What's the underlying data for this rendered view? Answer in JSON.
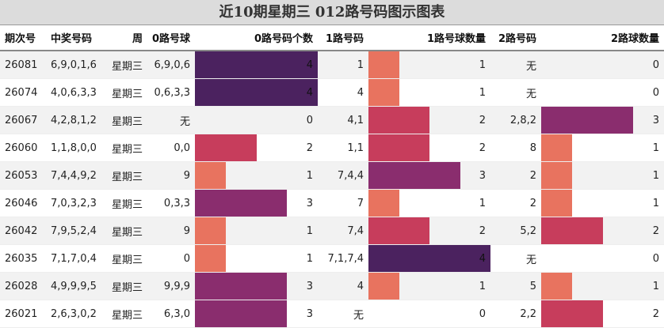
{
  "title": "近10期星期三 012路号码图示图表",
  "headers": [
    "期次号",
    "中奖号码",
    "周",
    "0路号球",
    "0路号码个数",
    "1路号码",
    "1路号球数量",
    "2路号码",
    "2路球数量"
  ],
  "max_count": 4,
  "colors": {
    "1": "#e8735f",
    "2": "#c73d5c",
    "3": "#8a2d6e",
    "4": "#4b225f"
  },
  "rows": [
    {
      "issue": "26081",
      "nums": "6,9,0,1,6",
      "day": "星期三",
      "r0": "6,9,0,6",
      "c0": 4,
      "r1": "1",
      "c1": 1,
      "r2": "无",
      "c2": 0
    },
    {
      "issue": "26074",
      "nums": "4,0,6,3,3",
      "day": "星期三",
      "r0": "0,6,3,3",
      "c0": 4,
      "r1": "4",
      "c1": 1,
      "r2": "无",
      "c2": 0
    },
    {
      "issue": "26067",
      "nums": "4,2,8,1,2",
      "day": "星期三",
      "r0": "无",
      "c0": 0,
      "r1": "4,1",
      "c1": 2,
      "r2": "2,8,2",
      "c2": 3
    },
    {
      "issue": "26060",
      "nums": "1,1,8,0,0",
      "day": "星期三",
      "r0": "0,0",
      "c0": 2,
      "r1": "1,1",
      "c1": 2,
      "r2": "8",
      "c2": 1
    },
    {
      "issue": "26053",
      "nums": "7,4,4,9,2",
      "day": "星期三",
      "r0": "9",
      "c0": 1,
      "r1": "7,4,4",
      "c1": 3,
      "r2": "2",
      "c2": 1
    },
    {
      "issue": "26046",
      "nums": "7,0,3,2,3",
      "day": "星期三",
      "r0": "0,3,3",
      "c0": 3,
      "r1": "7",
      "c1": 1,
      "r2": "2",
      "c2": 1
    },
    {
      "issue": "26042",
      "nums": "7,9,5,2,4",
      "day": "星期三",
      "r0": "9",
      "c0": 1,
      "r1": "7,4",
      "c1": 2,
      "r2": "5,2",
      "c2": 2
    },
    {
      "issue": "26035",
      "nums": "7,1,7,0,4",
      "day": "星期三",
      "r0": "0",
      "c0": 1,
      "r1": "7,1,7,4",
      "c1": 4,
      "r2": "无",
      "c2": 0
    },
    {
      "issue": "26028",
      "nums": "4,9,9,9,5",
      "day": "星期三",
      "r0": "9,9,9",
      "c0": 3,
      "r1": "4",
      "c1": 1,
      "r2": "5",
      "c2": 1
    },
    {
      "issue": "26021",
      "nums": "2,6,3,0,2",
      "day": "星期三",
      "r0": "6,3,0",
      "c0": 3,
      "r1": "无",
      "c1": 0,
      "r2": "2,2",
      "c2": 2
    }
  ]
}
